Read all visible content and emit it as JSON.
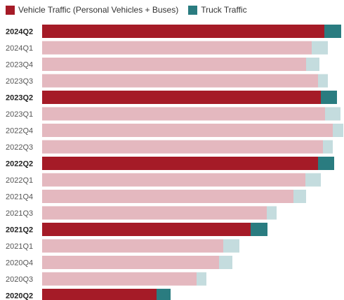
{
  "legend": {
    "vehicle_label": "Vehicle Traffic (Personal Vehicles + Buses)",
    "truck_label": "Truck Traffic"
  },
  "colors": {
    "vehicle": "#a51b27",
    "truck": "#2a7c80",
    "vehicle_muted": "#e4b8bf",
    "truck_muted": "#c4dcde"
  },
  "chart_data": {
    "type": "bar",
    "orientation": "horizontal",
    "stacked": true,
    "categories": [
      "2024Q2",
      "2024Q1",
      "2023Q4",
      "2023Q3",
      "2023Q2",
      "2023Q1",
      "2022Q4",
      "2022Q3",
      "2022Q2",
      "2022Q1",
      "2021Q4",
      "2021Q3",
      "2021Q2",
      "2021Q1",
      "2020Q4",
      "2020Q3",
      "2020Q2"
    ],
    "highlighted": [
      "2024Q2",
      "2023Q2",
      "2022Q2",
      "2021Q2",
      "2020Q2"
    ],
    "series": [
      {
        "name": "Vehicle Traffic (Personal Vehicles + Buses)",
        "values": [
          402,
          384,
          376,
          393,
          397,
          403,
          414,
          400,
          393,
          375,
          358,
          320,
          297,
          258,
          252,
          220,
          163
        ]
      },
      {
        "name": "Truck Traffic",
        "values": [
          24,
          23,
          19,
          14,
          23,
          22,
          15,
          14,
          23,
          22,
          18,
          14,
          24,
          23,
          19,
          14,
          20
        ]
      }
    ],
    "units": "relative bar length (no axis shown)",
    "xlim": [
      0,
      430
    ],
    "legend_position": "top-left",
    "grid": false
  }
}
